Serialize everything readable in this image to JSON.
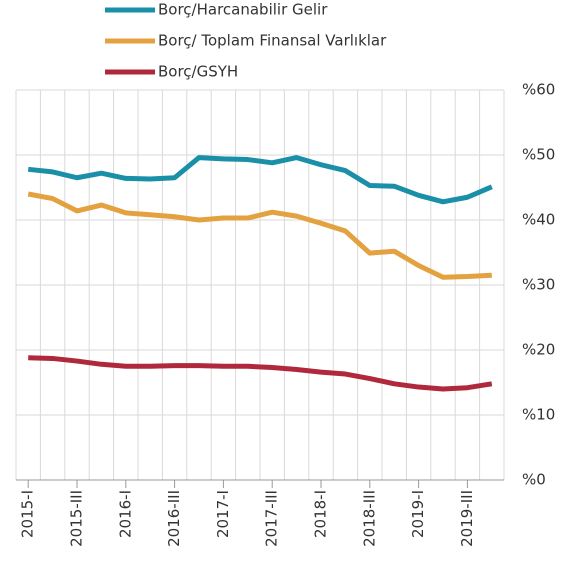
{
  "chart_data": {
    "type": "line",
    "categories": [
      "2015-I",
      null,
      "2015-III",
      null,
      "2016-I",
      null,
      "2016-III",
      null,
      "2017-I",
      null,
      "2017-III",
      null,
      "2018-I",
      null,
      "2018-III",
      null,
      "2019-I",
      null,
      "2019-III",
      null
    ],
    "series": [
      {
        "name": "Borç/Harcanabilir Gelir",
        "color": "#1a8fa8",
        "values": [
          47.8,
          47.4,
          46.5,
          47.2,
          46.4,
          46.3,
          46.5,
          49.6,
          49.4,
          49.3,
          48.8,
          49.6,
          48.5,
          47.6,
          45.3,
          45.2,
          43.8,
          42.8,
          43.5,
          45.1
        ]
      },
      {
        "name": "Borç/ Toplam Finansal Varlıklar",
        "color": "#e3a13f",
        "values": [
          44.0,
          43.3,
          41.4,
          42.3,
          41.1,
          40.8,
          40.5,
          40.0,
          40.3,
          40.3,
          41.2,
          40.6,
          39.5,
          38.3,
          34.9,
          35.2,
          33.0,
          31.2,
          31.3,
          31.5
        ]
      },
      {
        "name": "Borç/GSYH",
        "color": "#b0283c",
        "values": [
          18.8,
          18.7,
          18.3,
          17.8,
          17.5,
          17.5,
          17.6,
          17.6,
          17.5,
          17.5,
          17.3,
          17.0,
          16.6,
          16.3,
          15.6,
          14.8,
          14.3,
          14.0,
          14.2,
          14.8
        ]
      }
    ],
    "ylim": [
      0,
      60
    ],
    "yticks": [
      {
        "value": 0,
        "label": "%0"
      },
      {
        "value": 10,
        "label": "%10"
      },
      {
        "value": 20,
        "label": "%20"
      },
      {
        "value": 30,
        "label": "%30"
      },
      {
        "value": 40,
        "label": "%40"
      },
      {
        "value": 50,
        "label": "%50"
      },
      {
        "value": 60,
        "label": "%60"
      }
    ],
    "grid": true,
    "legend": "top"
  }
}
